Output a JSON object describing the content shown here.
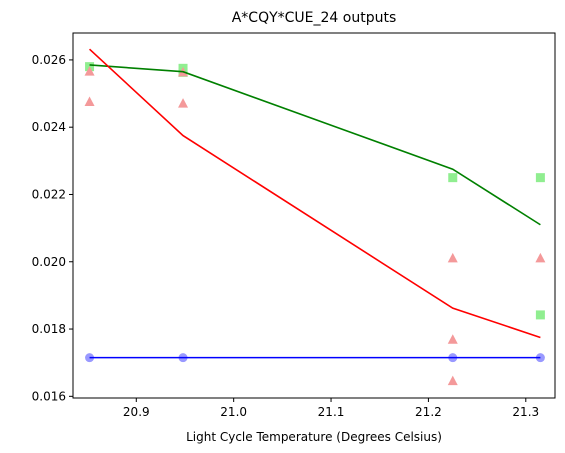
{
  "chart_data": {
    "type": "scatter",
    "title": "A*CQY*CUE_24 outputs",
    "xlabel": "Light Cycle Temperature (Degrees Celsius)",
    "ylabel": "",
    "xlim": [
      20.835,
      21.33
    ],
    "ylim": [
      0.01595,
      0.0268
    ],
    "x_ticks": [
      20.9,
      21.0,
      21.1,
      21.2,
      21.3
    ],
    "x_tick_labels": [
      "20.9",
      "21.0",
      "21.1",
      "21.2",
      "21.3"
    ],
    "y_ticks": [
      0.016,
      0.018,
      0.02,
      0.022,
      0.024,
      0.026
    ],
    "y_tick_labels": [
      "0.016",
      "0.018",
      "0.020",
      "0.022",
      "0.024",
      "0.026"
    ],
    "grid": false,
    "series": [
      {
        "kind": "line",
        "color": "#008000",
        "points": [
          [
            20.852,
            0.02585
          ],
          [
            20.948,
            0.02565
          ],
          [
            21.225,
            0.02275
          ],
          [
            21.315,
            0.0211
          ]
        ]
      },
      {
        "kind": "line",
        "color": "#ff0000",
        "points": [
          [
            20.852,
            0.02632
          ],
          [
            20.948,
            0.02375
          ],
          [
            21.225,
            0.01862
          ],
          [
            21.315,
            0.01775
          ]
        ]
      },
      {
        "kind": "line",
        "color": "#0000ff",
        "points": [
          [
            20.852,
            0.01715
          ],
          [
            20.948,
            0.01715
          ],
          [
            21.225,
            0.01715
          ],
          [
            21.315,
            0.01715
          ]
        ]
      },
      {
        "kind": "scatter",
        "marker": "square",
        "color": "#90ee90",
        "points": [
          [
            20.852,
            0.0258
          ],
          [
            20.948,
            0.02575
          ],
          [
            20.948,
            0.02563
          ],
          [
            21.225,
            0.0225
          ],
          [
            21.315,
            0.0225
          ],
          [
            21.315,
            0.01842
          ]
        ]
      },
      {
        "kind": "scatter",
        "marker": "triangle",
        "color": "#f4999a",
        "points": [
          [
            20.852,
            0.02565
          ],
          [
            20.852,
            0.02475
          ],
          [
            20.948,
            0.02563
          ],
          [
            20.948,
            0.0247
          ],
          [
            21.225,
            0.0201
          ],
          [
            21.225,
            0.01768
          ],
          [
            21.225,
            0.01645
          ],
          [
            21.315,
            0.0201
          ]
        ]
      },
      {
        "kind": "scatter",
        "marker": "circle",
        "color": "#9999ff",
        "points": [
          [
            20.852,
            0.01715
          ],
          [
            20.948,
            0.01715
          ],
          [
            21.225,
            0.01715
          ],
          [
            21.315,
            0.01715
          ]
        ]
      }
    ]
  }
}
